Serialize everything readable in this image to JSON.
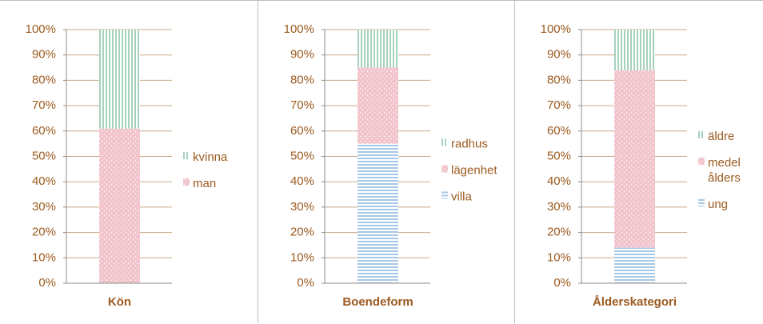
{
  "chart_data": [
    {
      "type": "bar",
      "stacked": true,
      "categories": [
        "Kön"
      ],
      "series": [
        {
          "name": "man",
          "color": "#f2c4cc",
          "pattern": "dots",
          "values": [
            61
          ]
        },
        {
          "name": "kvinna",
          "color": "#a6d2bd",
          "pattern": "vertical",
          "values": [
            39
          ]
        }
      ],
      "ylim": [
        0,
        100
      ],
      "yticks": [
        {
          "value": 0,
          "label": "0%"
        },
        {
          "value": 10,
          "label": "10%"
        },
        {
          "value": 20,
          "label": "20%"
        },
        {
          "value": 30,
          "label": "30%"
        },
        {
          "value": 40,
          "label": "40%"
        },
        {
          "value": 50,
          "label": "50%"
        },
        {
          "value": 60,
          "label": "60%"
        },
        {
          "value": 70,
          "label": "70%"
        },
        {
          "value": 80,
          "label": "80%"
        },
        {
          "value": 90,
          "label": "90%"
        },
        {
          "value": 100,
          "label": "100%"
        }
      ],
      "grid": true,
      "legend": "right"
    },
    {
      "type": "bar",
      "stacked": true,
      "categories": [
        "Boendeform"
      ],
      "series": [
        {
          "name": "villa",
          "color": "#a8c8e4",
          "pattern": "horizontal",
          "values": [
            55
          ]
        },
        {
          "name": "lägenhet",
          "color": "#f2c4cc",
          "pattern": "dots",
          "values": [
            30
          ]
        },
        {
          "name": "radhus",
          "color": "#a6d2bd",
          "pattern": "vertical",
          "values": [
            15
          ]
        }
      ],
      "ylim": [
        0,
        100
      ],
      "yticks": [
        {
          "value": 0,
          "label": "0%"
        },
        {
          "value": 10,
          "label": "10%"
        },
        {
          "value": 20,
          "label": "20%"
        },
        {
          "value": 30,
          "label": "30%"
        },
        {
          "value": 40,
          "label": "40%"
        },
        {
          "value": 50,
          "label": "50%"
        },
        {
          "value": 60,
          "label": "60%"
        },
        {
          "value": 70,
          "label": "70%"
        },
        {
          "value": 80,
          "label": "80%"
        },
        {
          "value": 90,
          "label": "90%"
        },
        {
          "value": 100,
          "label": "100%"
        }
      ],
      "grid": true,
      "legend": "right"
    },
    {
      "type": "bar",
      "stacked": true,
      "categories": [
        "Ålderskategori"
      ],
      "series": [
        {
          "name": "ung",
          "color": "#a8c8e4",
          "pattern": "horizontal",
          "values": [
            14
          ]
        },
        {
          "name": "medel ålders",
          "color": "#f2c4cc",
          "pattern": "dots",
          "values": [
            70
          ]
        },
        {
          "name": "äldre",
          "color": "#a6d2bd",
          "pattern": "vertical",
          "values": [
            16
          ]
        }
      ],
      "ylim": [
        0,
        100
      ],
      "yticks": [
        {
          "value": 0,
          "label": "0%"
        },
        {
          "value": 10,
          "label": "10%"
        },
        {
          "value": 20,
          "label": "20%"
        },
        {
          "value": 30,
          "label": "30%"
        },
        {
          "value": 40,
          "label": "40%"
        },
        {
          "value": 50,
          "label": "50%"
        },
        {
          "value": 60,
          "label": "60%"
        },
        {
          "value": 70,
          "label": "70%"
        },
        {
          "value": 80,
          "label": "80%"
        },
        {
          "value": 90,
          "label": "90%"
        },
        {
          "value": 100,
          "label": "100%"
        }
      ],
      "grid": true,
      "legend": "right"
    }
  ]
}
